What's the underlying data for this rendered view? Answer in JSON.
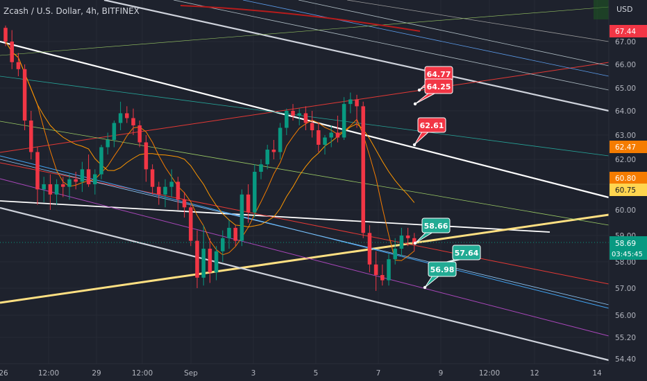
{
  "header": {
    "symbol": "Zcash / U.S. Dollar, 4h, BITFINEX"
  },
  "price_axis": {
    "currency": "USD",
    "ticks": [
      "67.00",
      "66.00",
      "65.00",
      "64.00",
      "63.00",
      "62.00",
      "61.00",
      "60.00",
      "59.00",
      "58.00",
      "57.00",
      "56.00",
      "55.20",
      "54.40"
    ],
    "tags": [
      {
        "text": "67.44",
        "value": 67.44,
        "color": "#f23645"
      },
      {
        "text": "62.47",
        "value": 62.47,
        "color": "#f57c00"
      },
      {
        "text": "60.80",
        "value": 60.8,
        "color": "#f57c00"
      },
      {
        "text": "60.75",
        "value": 60.75,
        "color": "#ffd54f"
      }
    ],
    "last_price": {
      "text": "58.69",
      "value": 58.69,
      "countdown": "03:45:45",
      "color": "#089981"
    }
  },
  "time_axis": {
    "ticks": [
      "26",
      "12:00",
      "29",
      "12:00",
      "Sep",
      "3",
      "5",
      "7",
      "9",
      "12:00",
      "12",
      "14"
    ]
  },
  "callouts": [
    {
      "text": "64.77",
      "color": "#f23645"
    },
    {
      "text": "64.25",
      "color": "#f23645"
    },
    {
      "text": "62.61",
      "color": "#f23645"
    },
    {
      "text": "58.66",
      "color": "#22ab94"
    },
    {
      "text": "57.64",
      "color": "#22ab94"
    },
    {
      "text": "56.98",
      "color": "#22ab94"
    }
  ],
  "colors": {
    "up": "#089981",
    "down": "#f23645",
    "background": "#1e222d"
  },
  "chart_data": {
    "type": "candlestick",
    "title": "Zcash / U.S. Dollar, 4h, BITFINEX",
    "ylabel": "USD",
    "ylim": [
      54.4,
      67.8
    ],
    "x_ticks": [
      "26",
      "12:00",
      "29",
      "12:00",
      "Sep",
      "3",
      "5",
      "7",
      "9",
      "12:00",
      "12",
      "14"
    ],
    "candles": [
      [
        67.6,
        67.7,
        66.8,
        67.0
      ],
      [
        67.0,
        67.5,
        65.8,
        66.1
      ],
      [
        66.1,
        66.5,
        65.5,
        65.8
      ],
      [
        65.8,
        66.0,
        63.2,
        63.6
      ],
      [
        63.6,
        64.0,
        62.0,
        62.3
      ],
      [
        62.3,
        62.5,
        60.2,
        60.8
      ],
      [
        60.8,
        61.3,
        60.3,
        61.0
      ],
      [
        61.0,
        61.4,
        60.0,
        60.6
      ],
      [
        60.6,
        61.2,
        60.2,
        61.0
      ],
      [
        61.0,
        61.3,
        60.5,
        60.9
      ],
      [
        60.9,
        61.4,
        60.4,
        61.2
      ],
      [
        61.2,
        61.5,
        60.8,
        61.1
      ],
      [
        61.1,
        61.9,
        60.7,
        61.6
      ],
      [
        61.6,
        62.2,
        60.9,
        61.0
      ],
      [
        61.0,
        61.6,
        60.6,
        61.4
      ],
      [
        61.4,
        62.6,
        61.2,
        62.5
      ],
      [
        62.5,
        63.1,
        62.2,
        62.8
      ],
      [
        62.8,
        63.6,
        62.5,
        63.5
      ],
      [
        63.5,
        64.4,
        63.2,
        63.9
      ],
      [
        63.9,
        64.2,
        63.5,
        63.7
      ],
      [
        63.7,
        64.1,
        63.0,
        63.4
      ],
      [
        63.4,
        63.6,
        62.5,
        62.7
      ],
      [
        62.7,
        63.0,
        61.1,
        61.6
      ],
      [
        61.6,
        61.8,
        60.6,
        60.9
      ],
      [
        60.9,
        61.1,
        60.2,
        60.6
      ],
      [
        60.6,
        61.2,
        60.1,
        60.9
      ],
      [
        60.9,
        61.6,
        60.5,
        61.1
      ],
      [
        61.1,
        61.3,
        60.0,
        60.4
      ],
      [
        60.4,
        60.7,
        59.7,
        60.1
      ],
      [
        60.1,
        60.2,
        58.6,
        58.8
      ],
      [
        58.8,
        59.2,
        57.0,
        57.4
      ],
      [
        57.4,
        59.4,
        57.1,
        58.5
      ],
      [
        58.5,
        58.9,
        57.2,
        57.6
      ],
      [
        57.6,
        58.6,
        57.3,
        58.4
      ],
      [
        58.4,
        59.2,
        58.0,
        58.9
      ],
      [
        58.9,
        59.6,
        58.5,
        59.3
      ],
      [
        59.3,
        59.4,
        58.6,
        58.8
      ],
      [
        58.8,
        60.8,
        58.6,
        60.6
      ],
      [
        60.6,
        61.0,
        59.5,
        59.9
      ],
      [
        59.9,
        61.8,
        59.7,
        61.5
      ],
      [
        61.5,
        62.0,
        61.2,
        61.8
      ],
      [
        61.8,
        62.6,
        61.6,
        62.4
      ],
      [
        62.4,
        62.8,
        62.0,
        62.3
      ],
      [
        62.3,
        63.5,
        62.0,
        63.3
      ],
      [
        63.3,
        64.1,
        63.0,
        64.0
      ],
      [
        64.0,
        64.3,
        63.6,
        63.8
      ],
      [
        63.8,
        64.1,
        63.4,
        63.9
      ],
      [
        63.9,
        64.2,
        63.2,
        63.5
      ],
      [
        63.5,
        64.0,
        62.9,
        63.2
      ],
      [
        63.2,
        63.5,
        62.3,
        62.6
      ],
      [
        62.6,
        63.0,
        62.2,
        62.9
      ],
      [
        62.9,
        63.4,
        62.5,
        63.1
      ],
      [
        63.1,
        63.8,
        62.7,
        62.9
      ],
      [
        62.9,
        64.6,
        62.8,
        64.3
      ],
      [
        64.3,
        64.8,
        63.9,
        64.5
      ],
      [
        64.5,
        64.7,
        63.3,
        64.2
      ],
      [
        64.2,
        64.4,
        58.9,
        59.1
      ],
      [
        59.1,
        59.4,
        57.6,
        57.9
      ],
      [
        57.9,
        58.4,
        56.9,
        57.5
      ],
      [
        57.5,
        57.9,
        57.1,
        57.3
      ],
      [
        57.3,
        58.3,
        57.1,
        58.1
      ],
      [
        58.1,
        58.9,
        57.9,
        58.5
      ],
      [
        58.5,
        59.3,
        58.2,
        59.0
      ],
      [
        59.0,
        59.3,
        58.6,
        58.9
      ],
      [
        58.9,
        59.1,
        58.4,
        58.69
      ]
    ],
    "moving_averages": [
      {
        "color": "#f57c00",
        "values_at_end": 62.47
      },
      {
        "color": "#f57c00",
        "values_at_end": 60.8
      }
    ],
    "grid": true
  }
}
